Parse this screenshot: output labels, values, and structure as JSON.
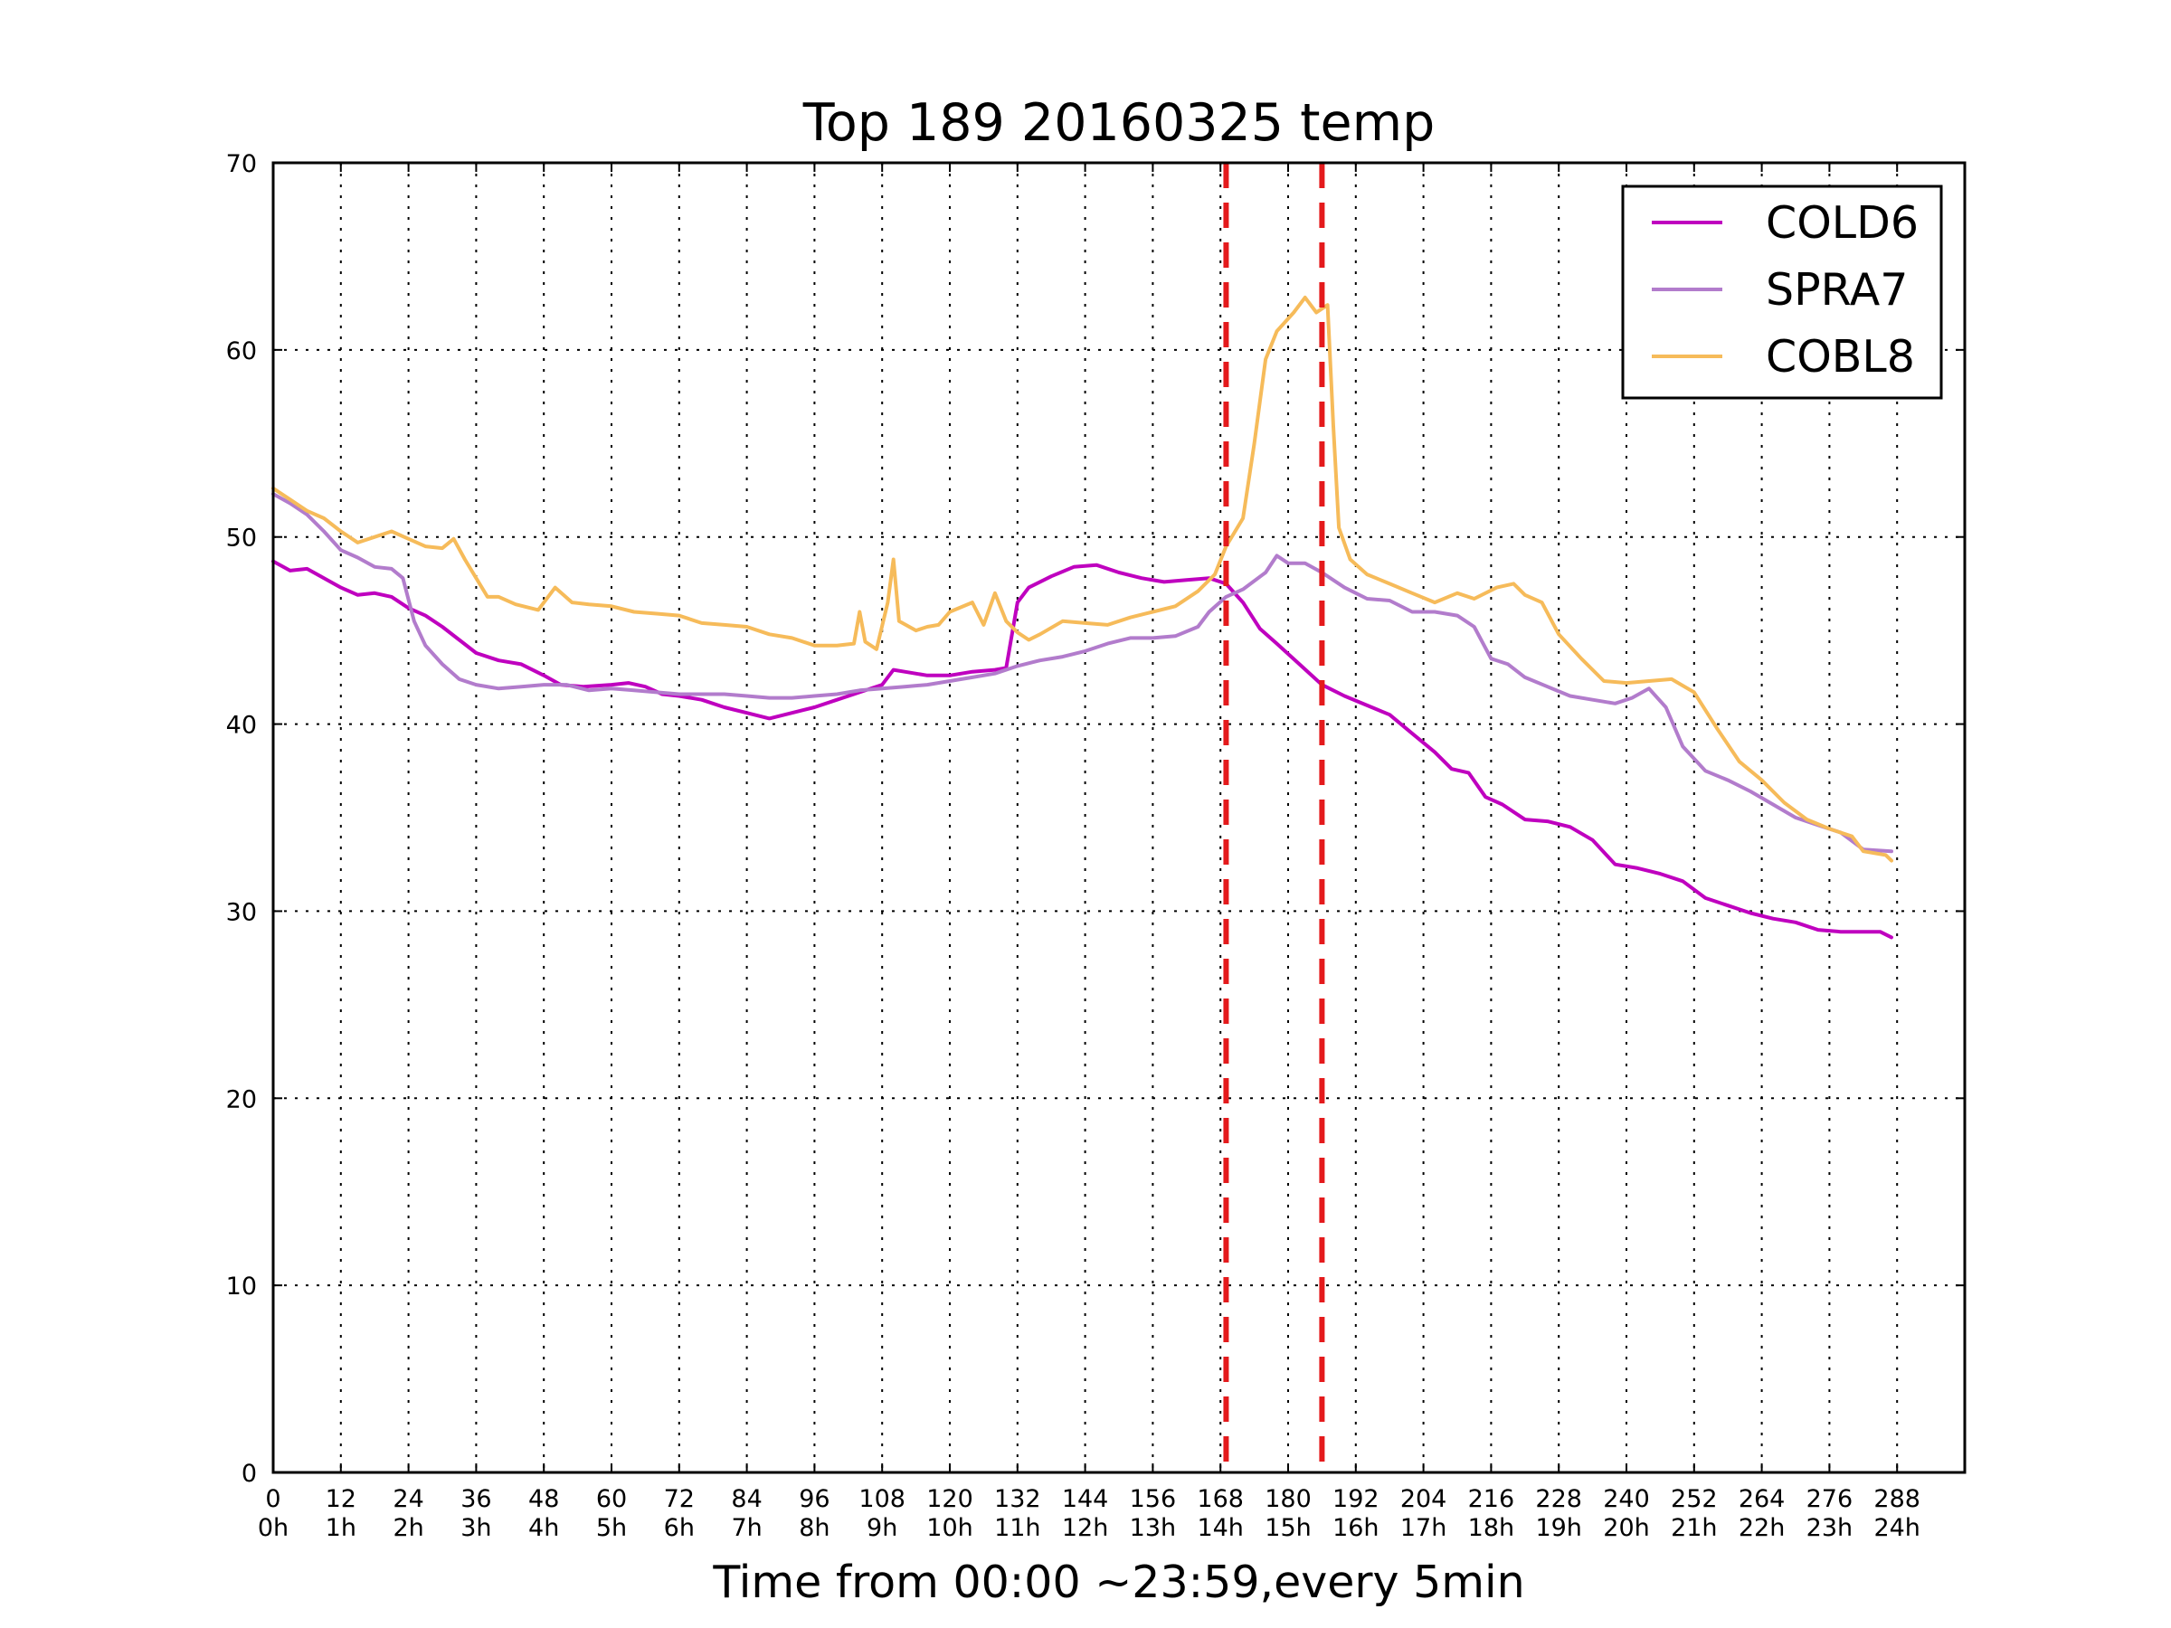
{
  "chart_data": {
    "type": "line",
    "title": "Top 189 20160325 temp",
    "xlabel": "Time from 00:00 ~23:59,every 5min",
    "ylabel": "",
    "xlim": [
      0,
      300
    ],
    "ylim": [
      0,
      70
    ],
    "grid": true,
    "legend_position": "top-right",
    "x_ticks": [
      0,
      12,
      24,
      36,
      48,
      60,
      72,
      84,
      96,
      108,
      120,
      132,
      144,
      156,
      168,
      180,
      192,
      204,
      216,
      228,
      240,
      252,
      264,
      276,
      288
    ],
    "x_tick_labels": [
      "0",
      "12",
      "24",
      "36",
      "48",
      "60",
      "72",
      "84",
      "96",
      "108",
      "120",
      "132",
      "144",
      "156",
      "168",
      "180",
      "192",
      "204",
      "216",
      "228",
      "240",
      "252",
      "264",
      "276",
      "288"
    ],
    "x_tick_hours": [
      "0h",
      "1h",
      "2h",
      "3h",
      "4h",
      "5h",
      "6h",
      "7h",
      "8h",
      "9h",
      "10h",
      "11h",
      "12h",
      "13h",
      "14h",
      "15h",
      "16h",
      "17h",
      "18h",
      "19h",
      "20h",
      "21h",
      "22h",
      "23h",
      "24h"
    ],
    "y_ticks": [
      0,
      10,
      20,
      30,
      40,
      50,
      60,
      70
    ],
    "y_tick_labels": [
      "0",
      "10",
      "20",
      "30",
      "40",
      "50",
      "60",
      "70"
    ],
    "vertical_lines": [
      {
        "x": 169,
        "color": "#e41a1c"
      },
      {
        "x": 186,
        "color": "#e41a1c"
      }
    ],
    "series": [
      {
        "name": "COLD6",
        "color": "#bf00bf",
        "points": [
          [
            0,
            48.7
          ],
          [
            3,
            48.2
          ],
          [
            6,
            48.3
          ],
          [
            9,
            47.8
          ],
          [
            12,
            47.3
          ],
          [
            15,
            46.9
          ],
          [
            18,
            47
          ],
          [
            21,
            46.8
          ],
          [
            24,
            46.2
          ],
          [
            27,
            45.8
          ],
          [
            30,
            45.2
          ],
          [
            33,
            44.5
          ],
          [
            36,
            43.8
          ],
          [
            40,
            43.4
          ],
          [
            44,
            43.2
          ],
          [
            48,
            42.6
          ],
          [
            51,
            42.1
          ],
          [
            55,
            42
          ],
          [
            60,
            42.1
          ],
          [
            63,
            42.2
          ],
          [
            66,
            42
          ],
          [
            69,
            41.6
          ],
          [
            72,
            41.5
          ],
          [
            76,
            41.3
          ],
          [
            80,
            40.9
          ],
          [
            84,
            40.6
          ],
          [
            88,
            40.3
          ],
          [
            92,
            40.6
          ],
          [
            96,
            40.9
          ],
          [
            100,
            41.3
          ],
          [
            104,
            41.7
          ],
          [
            108,
            42.1
          ],
          [
            110,
            42.9
          ],
          [
            112,
            42.8
          ],
          [
            116,
            42.6
          ],
          [
            120,
            42.6
          ],
          [
            124,
            42.8
          ],
          [
            128,
            42.9
          ],
          [
            130,
            43
          ],
          [
            132,
            46.5
          ],
          [
            134,
            47.3
          ],
          [
            138,
            47.9
          ],
          [
            142,
            48.4
          ],
          [
            146,
            48.5
          ],
          [
            150,
            48.1
          ],
          [
            154,
            47.8
          ],
          [
            158,
            47.6
          ],
          [
            162,
            47.7
          ],
          [
            166,
            47.8
          ],
          [
            169,
            47.5
          ],
          [
            172,
            46.5
          ],
          [
            175,
            45.1
          ],
          [
            178,
            44.3
          ],
          [
            182,
            43.2
          ],
          [
            186,
            42.1
          ],
          [
            190,
            41.5
          ],
          [
            194,
            41
          ],
          [
            198,
            40.5
          ],
          [
            202,
            39.5
          ],
          [
            206,
            38.5
          ],
          [
            209,
            37.6
          ],
          [
            212,
            37.4
          ],
          [
            215,
            36.1
          ],
          [
            218,
            35.7
          ],
          [
            222,
            34.9
          ],
          [
            226,
            34.8
          ],
          [
            230,
            34.5
          ],
          [
            234,
            33.8
          ],
          [
            238,
            32.5
          ],
          [
            242,
            32.3
          ],
          [
            246,
            32
          ],
          [
            250,
            31.6
          ],
          [
            254,
            30.7
          ],
          [
            258,
            30.3
          ],
          [
            262,
            29.9
          ],
          [
            266,
            29.6
          ],
          [
            270,
            29.4
          ],
          [
            274,
            29
          ],
          [
            278,
            28.9
          ],
          [
            282,
            28.9
          ],
          [
            285,
            28.9
          ],
          [
            287,
            28.6
          ]
        ]
      },
      {
        "name": "SPRA7",
        "color": "#b27ccc",
        "points": [
          [
            0,
            52.3
          ],
          [
            3,
            51.8
          ],
          [
            6,
            51.2
          ],
          [
            9,
            50.3
          ],
          [
            12,
            49.3
          ],
          [
            15,
            48.9
          ],
          [
            18,
            48.4
          ],
          [
            21,
            48.3
          ],
          [
            23,
            47.8
          ],
          [
            25,
            45.5
          ],
          [
            27,
            44.2
          ],
          [
            30,
            43.2
          ],
          [
            33,
            42.4
          ],
          [
            36,
            42.1
          ],
          [
            40,
            41.9
          ],
          [
            44,
            42
          ],
          [
            48,
            42.1
          ],
          [
            52,
            42.1
          ],
          [
            56,
            41.8
          ],
          [
            60,
            41.9
          ],
          [
            64,
            41.8
          ],
          [
            68,
            41.7
          ],
          [
            72,
            41.6
          ],
          [
            76,
            41.6
          ],
          [
            80,
            41.6
          ],
          [
            84,
            41.5
          ],
          [
            88,
            41.4
          ],
          [
            92,
            41.4
          ],
          [
            96,
            41.5
          ],
          [
            100,
            41.6
          ],
          [
            104,
            41.8
          ],
          [
            108,
            41.9
          ],
          [
            112,
            42
          ],
          [
            116,
            42.1
          ],
          [
            120,
            42.3
          ],
          [
            124,
            42.5
          ],
          [
            128,
            42.7
          ],
          [
            132,
            43.1
          ],
          [
            136,
            43.4
          ],
          [
            140,
            43.6
          ],
          [
            144,
            43.9
          ],
          [
            148,
            44.3
          ],
          [
            152,
            44.6
          ],
          [
            156,
            44.6
          ],
          [
            160,
            44.7
          ],
          [
            164,
            45.2
          ],
          [
            166,
            46
          ],
          [
            169,
            46.8
          ],
          [
            172,
            47.2
          ],
          [
            176,
            48.1
          ],
          [
            178,
            49
          ],
          [
            180,
            48.6
          ],
          [
            183,
            48.6
          ],
          [
            186,
            48.1
          ],
          [
            190,
            47.3
          ],
          [
            194,
            46.7
          ],
          [
            198,
            46.6
          ],
          [
            202,
            46
          ],
          [
            206,
            46
          ],
          [
            210,
            45.8
          ],
          [
            213,
            45.2
          ],
          [
            216,
            43.5
          ],
          [
            219,
            43.2
          ],
          [
            222,
            42.5
          ],
          [
            226,
            42
          ],
          [
            230,
            41.5
          ],
          [
            234,
            41.3
          ],
          [
            238,
            41.1
          ],
          [
            241,
            41.4
          ],
          [
            244,
            41.9
          ],
          [
            247,
            40.9
          ],
          [
            250,
            38.8
          ],
          [
            254,
            37.5
          ],
          [
            258,
            37
          ],
          [
            262,
            36.4
          ],
          [
            266,
            35.7
          ],
          [
            270,
            35
          ],
          [
            274,
            34.6
          ],
          [
            278,
            34.2
          ],
          [
            282,
            33.3
          ],
          [
            287,
            33.2
          ]
        ]
      },
      {
        "name": "COBL8",
        "color": "#f6bb5a",
        "points": [
          [
            0,
            52.6
          ],
          [
            3,
            52
          ],
          [
            6,
            51.4
          ],
          [
            9,
            51
          ],
          [
            12,
            50.3
          ],
          [
            15,
            49.7
          ],
          [
            18,
            50
          ],
          [
            21,
            50.3
          ],
          [
            24,
            49.9
          ],
          [
            27,
            49.5
          ],
          [
            30,
            49.4
          ],
          [
            32,
            49.9
          ],
          [
            34,
            48.8
          ],
          [
            36,
            47.8
          ],
          [
            38,
            46.8
          ],
          [
            40,
            46.8
          ],
          [
            43,
            46.4
          ],
          [
            47,
            46.1
          ],
          [
            50,
            47.3
          ],
          [
            53,
            46.5
          ],
          [
            56,
            46.4
          ],
          [
            60,
            46.3
          ],
          [
            64,
            46
          ],
          [
            68,
            45.9
          ],
          [
            72,
            45.8
          ],
          [
            76,
            45.4
          ],
          [
            80,
            45.3
          ],
          [
            84,
            45.2
          ],
          [
            88,
            44.8
          ],
          [
            92,
            44.6
          ],
          [
            96,
            44.2
          ],
          [
            100,
            44.2
          ],
          [
            103,
            44.3
          ],
          [
            104,
            46
          ],
          [
            105,
            44.4
          ],
          [
            107,
            44
          ],
          [
            109,
            46.5
          ],
          [
            110,
            48.8
          ],
          [
            111,
            45.5
          ],
          [
            114,
            45
          ],
          [
            116,
            45.2
          ],
          [
            118,
            45.3
          ],
          [
            120,
            46
          ],
          [
            124,
            46.5
          ],
          [
            126,
            45.3
          ],
          [
            128,
            47
          ],
          [
            130,
            45.5
          ],
          [
            132,
            44.9
          ],
          [
            134,
            44.5
          ],
          [
            136,
            44.8
          ],
          [
            140,
            45.5
          ],
          [
            144,
            45.4
          ],
          [
            148,
            45.3
          ],
          [
            152,
            45.7
          ],
          [
            156,
            46
          ],
          [
            160,
            46.3
          ],
          [
            164,
            47.1
          ],
          [
            167,
            48
          ],
          [
            169,
            49.5
          ],
          [
            172,
            51
          ],
          [
            174,
            55
          ],
          [
            176,
            59.5
          ],
          [
            178,
            61
          ],
          [
            181,
            62
          ],
          [
            183,
            62.8
          ],
          [
            185,
            62
          ],
          [
            187,
            62.4
          ],
          [
            188,
            56
          ],
          [
            189,
            50.5
          ],
          [
            191,
            48.8
          ],
          [
            194,
            48
          ],
          [
            198,
            47.5
          ],
          [
            202,
            47
          ],
          [
            206,
            46.5
          ],
          [
            210,
            47
          ],
          [
            213,
            46.7
          ],
          [
            217,
            47.3
          ],
          [
            220,
            47.5
          ],
          [
            222,
            46.9
          ],
          [
            225,
            46.5
          ],
          [
            228,
            44.8
          ],
          [
            232,
            43.5
          ],
          [
            236,
            42.3
          ],
          [
            240,
            42.2
          ],
          [
            244,
            42.3
          ],
          [
            248,
            42.4
          ],
          [
            252,
            41.7
          ],
          [
            256,
            39.8
          ],
          [
            260,
            38
          ],
          [
            264,
            37
          ],
          [
            268,
            35.8
          ],
          [
            272,
            34.9
          ],
          [
            276,
            34.4
          ],
          [
            280,
            34
          ],
          [
            282,
            33.2
          ],
          [
            286,
            33
          ],
          [
            287,
            32.7
          ]
        ]
      }
    ]
  }
}
